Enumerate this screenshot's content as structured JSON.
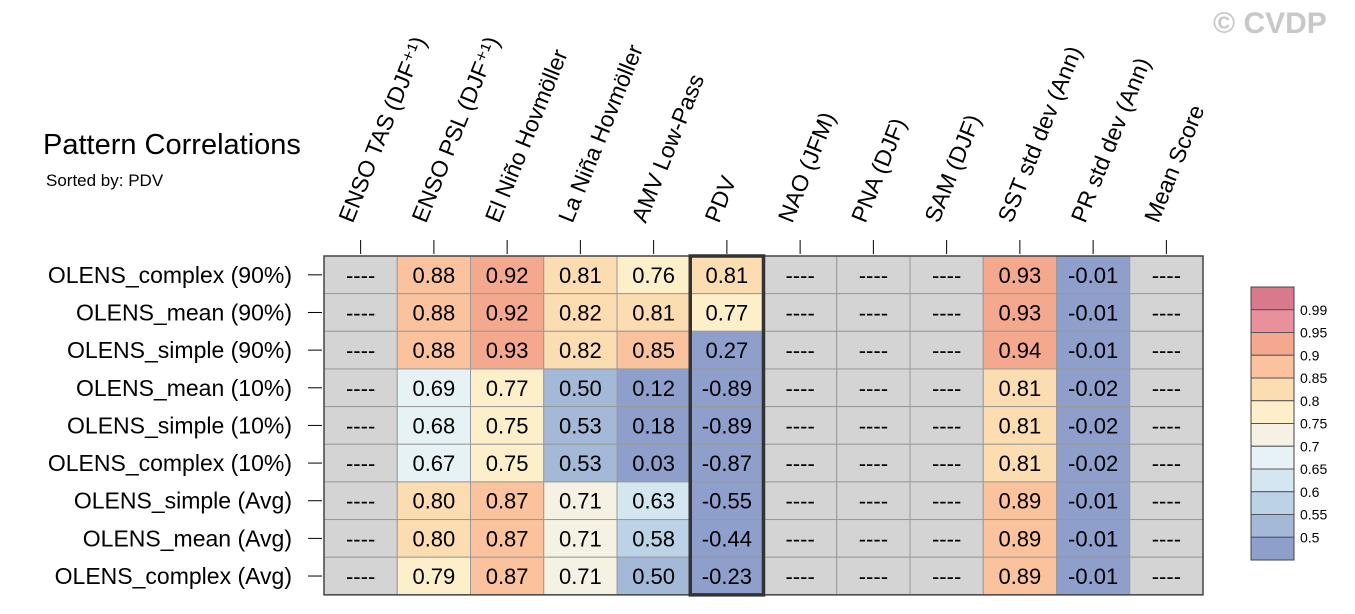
{
  "watermark": "© CVDP",
  "chart_data": {
    "type": "heatmap",
    "title": "Pattern Correlations",
    "subtitle": "Sorted by: PDV",
    "sorted_column": "PDV",
    "columns": [
      "ENSO TAS (DJF⁺¹)",
      "ENSO PSL (DJF⁺¹)",
      "El Niño Hovmöller",
      "La Niña Hovmöller",
      "AMV Low-Pass",
      "PDV",
      "NAO (JFM)",
      "PNA (DJF)",
      "SAM (DJF)",
      "SST std dev (Ann)",
      "PR std dev (Ann)",
      "Mean Score"
    ],
    "rows": [
      "OLENS_complex (90%)",
      "OLENS_mean (90%)",
      "OLENS_simple (90%)",
      "OLENS_mean (10%)",
      "OLENS_simple (10%)",
      "OLENS_complex (10%)",
      "OLENS_simple (Avg)",
      "OLENS_mean (Avg)",
      "OLENS_complex (Avg)"
    ],
    "missing_text": "----",
    "values": [
      [
        null,
        0.88,
        0.92,
        0.81,
        0.76,
        0.81,
        null,
        null,
        null,
        0.93,
        -0.01,
        null
      ],
      [
        null,
        0.88,
        0.92,
        0.82,
        0.81,
        0.77,
        null,
        null,
        null,
        0.93,
        -0.01,
        null
      ],
      [
        null,
        0.88,
        0.93,
        0.82,
        0.85,
        0.27,
        null,
        null,
        null,
        0.94,
        -0.01,
        null
      ],
      [
        null,
        0.69,
        0.77,
        0.5,
        0.12,
        -0.89,
        null,
        null,
        null,
        0.81,
        -0.02,
        null
      ],
      [
        null,
        0.68,
        0.75,
        0.53,
        0.18,
        -0.89,
        null,
        null,
        null,
        0.81,
        -0.02,
        null
      ],
      [
        null,
        0.67,
        0.75,
        0.53,
        0.03,
        -0.87,
        null,
        null,
        null,
        0.81,
        -0.02,
        null
      ],
      [
        null,
        0.8,
        0.87,
        0.71,
        0.63,
        -0.55,
        null,
        null,
        null,
        0.89,
        -0.01,
        null
      ],
      [
        null,
        0.8,
        0.87,
        0.71,
        0.58,
        -0.44,
        null,
        null,
        null,
        0.89,
        -0.01,
        null
      ],
      [
        null,
        0.79,
        0.87,
        0.71,
        0.5,
        -0.23,
        null,
        null,
        null,
        0.89,
        -0.01,
        null
      ]
    ],
    "colorbar": {
      "labels": [
        "0.99",
        "0.95",
        "0.9",
        "0.85",
        "0.8",
        "0.75",
        "0.7",
        "0.65",
        "0.6",
        "0.55",
        "0.5"
      ],
      "thresholds": [
        0.5,
        0.55,
        0.6,
        0.65,
        0.7,
        0.75,
        0.8,
        0.85,
        0.9,
        0.95,
        0.99
      ],
      "colors_low_to_high": [
        "#8e9fcc",
        "#a4b8d8",
        "#bcd2e6",
        "#d4e6ef",
        "#e6f2f5",
        "#f5f2e4",
        "#fdefc9",
        "#fcdcb1",
        "#fac39e",
        "#f4a88e",
        "#e8919c",
        "#d97a8c"
      ]
    },
    "missing_color": "#d4d4d4"
  }
}
